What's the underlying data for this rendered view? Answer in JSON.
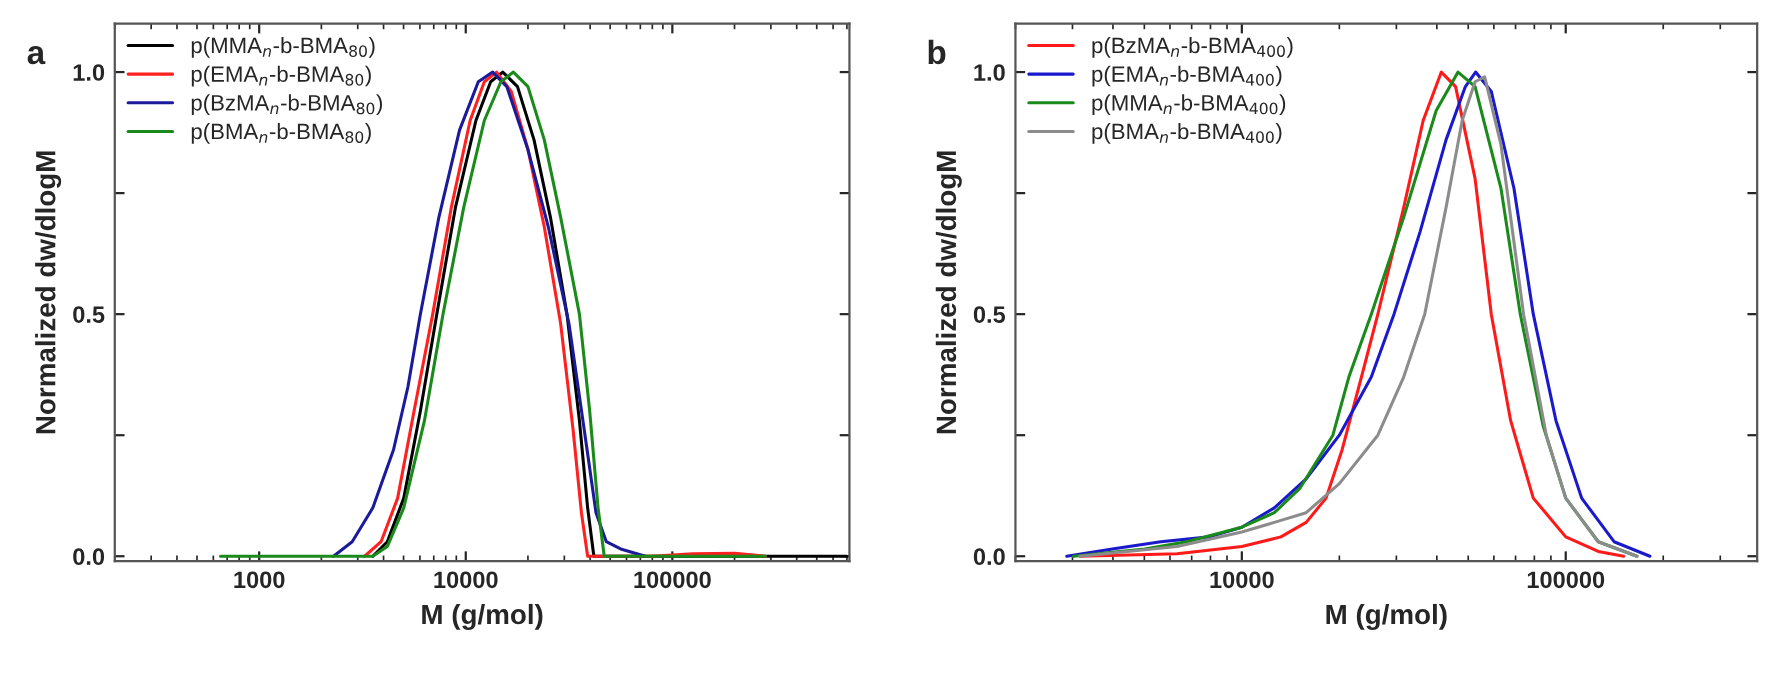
{
  "chart_data": [
    {
      "type": "line",
      "annotations": [
        "a"
      ],
      "xlabel": "M (g/mol)",
      "ylabel": "Normalized dw/dlogM",
      "log": "x",
      "grid": false,
      "legend": "top left",
      "marker": "none",
      "line_style": "solid",
      "xlim": [
        200,
        720000
      ],
      "xticks": [
        1000,
        10000,
        100000
      ],
      "ylim": [
        -0.01,
        1.1
      ],
      "yticks": [
        {
          "value": 0,
          "label": "0.0"
        },
        {
          "value": 0.25,
          "label": null
        },
        {
          "value": 0.5,
          "label": "0.5"
        },
        {
          "value": 0.75,
          "label": null
        },
        {
          "value": 1,
          "label": "1.0"
        }
      ],
      "series": [
        {
          "name": "p(MMA$_{n}$-b-BMA$_{80}$)",
          "color": "#000000",
          "x": [
            3550,
            4170,
            5010,
            6030,
            7240,
            8910,
            11200,
            13200,
            15100,
            17800,
            21400,
            25700,
            30900,
            35500,
            38900,
            41700,
            100000,
            700000
          ],
          "values": [
            0,
            0.03,
            0.12,
            0.3,
            0.5,
            0.72,
            0.9,
            0.98,
            1.0,
            0.97,
            0.86,
            0.7,
            0.5,
            0.28,
            0.1,
            0,
            0,
            0
          ]
        },
        {
          "name": "p(EMA$_{n}$-b-BMA$_{80}$)",
          "color": "#ff2020",
          "x": [
            3240,
            3890,
            4680,
            5620,
            6920,
            8510,
            10500,
            12300,
            14100,
            16600,
            20000,
            24000,
            28800,
            33100,
            36300,
            38900,
            79400,
            126000,
            200000,
            282000
          ],
          "values": [
            0,
            0.03,
            0.12,
            0.3,
            0.5,
            0.72,
            0.9,
            0.98,
            1.0,
            0.96,
            0.84,
            0.68,
            0.48,
            0.26,
            0.09,
            0,
            0,
            0.005,
            0.006,
            0
          ]
        },
        {
          "name": "p(BzMA$_{n}$-b-BMA$_{80}$)",
          "color": "#1a1a9a",
          "x": [
            2290,
            2820,
            3550,
            4470,
            5250,
            6030,
            7410,
            9330,
            11500,
            13500,
            15800,
            20000,
            25100,
            31600,
            37200,
            42700,
            47900,
            56200,
            74100
          ],
          "values": [
            0,
            0.03,
            0.1,
            0.22,
            0.35,
            0.5,
            0.7,
            0.88,
            0.98,
            1.0,
            0.97,
            0.84,
            0.68,
            0.48,
            0.27,
            0.09,
            0.03,
            0.015,
            0
          ]
        },
        {
          "name": "p(BMA$_{n}$-b-BMA$_{80}$)",
          "color": "#1a8a1a",
          "x": [
            650,
            3550,
            4170,
            5010,
            6310,
            7760,
            9770,
            12300,
            14800,
            17000,
            20000,
            24000,
            28800,
            35500,
            39800,
            43700,
            46800,
            282000
          ],
          "values": [
            0,
            0,
            0.02,
            0.1,
            0.28,
            0.5,
            0.72,
            0.9,
            0.98,
            1.0,
            0.97,
            0.86,
            0.7,
            0.5,
            0.3,
            0.1,
            0,
            0
          ]
        }
      ]
    },
    {
      "type": "line",
      "annotations": [
        "b"
      ],
      "xlabel": "M (g/mol)",
      "ylabel": "Normalized dw/dlogM",
      "log": "x",
      "grid": false,
      "legend": "top left",
      "marker": "none",
      "line_style": "solid",
      "xlim": [
        2000,
        390000
      ],
      "xticks": [
        10000,
        100000
      ],
      "ylim": [
        -0.01,
        1.1
      ],
      "yticks": [
        {
          "value": 0,
          "label": "0.0"
        },
        {
          "value": 0.25,
          "label": null
        },
        {
          "value": 0.5,
          "label": "0.5"
        },
        {
          "value": 0.75,
          "label": null
        },
        {
          "value": 1,
          "label": "1.0"
        }
      ],
      "series": [
        {
          "name": "p(BzMA$_{n}$-b-BMA$_{400}$)",
          "color": "#ff1a1a",
          "x": [
            3160,
            6310,
            10000,
            13200,
            15800,
            18200,
            20400,
            23400,
            26300,
            31600,
            36300,
            41300,
            45700,
            52500,
            58900,
            67600,
            79400,
            100000,
            126000,
            151000
          ],
          "values": [
            0,
            0.005,
            0.02,
            0.04,
            0.07,
            0.12,
            0.22,
            0.37,
            0.5,
            0.72,
            0.9,
            1.0,
            0.97,
            0.78,
            0.5,
            0.28,
            0.12,
            0.04,
            0.01,
            0
          ]
        },
        {
          "name": "p(EMA$_{n}$-b-BMA$_{400}$)",
          "color": "#1a1acc",
          "x": [
            2880,
            3980,
            5620,
            7940,
            10000,
            12600,
            15800,
            20000,
            25100,
            29500,
            35500,
            42700,
            49000,
            52700,
            58900,
            69200,
            79400,
            93300,
            112000,
            141000,
            182000
          ],
          "values": [
            0,
            0.015,
            0.03,
            0.04,
            0.06,
            0.1,
            0.16,
            0.25,
            0.37,
            0.5,
            0.67,
            0.86,
            0.97,
            1.0,
            0.96,
            0.76,
            0.5,
            0.28,
            0.12,
            0.03,
            0
          ]
        },
        {
          "name": "p(MMA$_{n}$-b-BMA$_{400}$)",
          "color": "#1a8a1a",
          "x": [
            3020,
            5010,
            6760,
            10000,
            12600,
            15100,
            19100,
            21400,
            25100,
            31600,
            39800,
            46500,
            52500,
            63100,
            72400,
            85100,
            100000,
            126000,
            166000
          ],
          "values": [
            0,
            0.015,
            0.03,
            0.06,
            0.09,
            0.14,
            0.25,
            0.37,
            0.5,
            0.7,
            0.92,
            1.0,
            0.97,
            0.76,
            0.5,
            0.27,
            0.12,
            0.03,
            0
          ]
        },
        {
          "name": "p(BMA$_{n}$-b-BMA$_{400}$)",
          "color": "#8c8c8c",
          "x": [
            3160,
            6310,
            10000,
            12600,
            15800,
            20000,
            26300,
            31600,
            36700,
            42700,
            47900,
            52500,
            56200,
            63100,
            74100,
            87100,
            100000,
            126000,
            166000
          ],
          "values": [
            0,
            0.02,
            0.05,
            0.07,
            0.09,
            0.15,
            0.25,
            0.37,
            0.5,
            0.72,
            0.9,
            0.98,
            0.99,
            0.85,
            0.5,
            0.25,
            0.12,
            0.03,
            0
          ]
        }
      ]
    }
  ]
}
